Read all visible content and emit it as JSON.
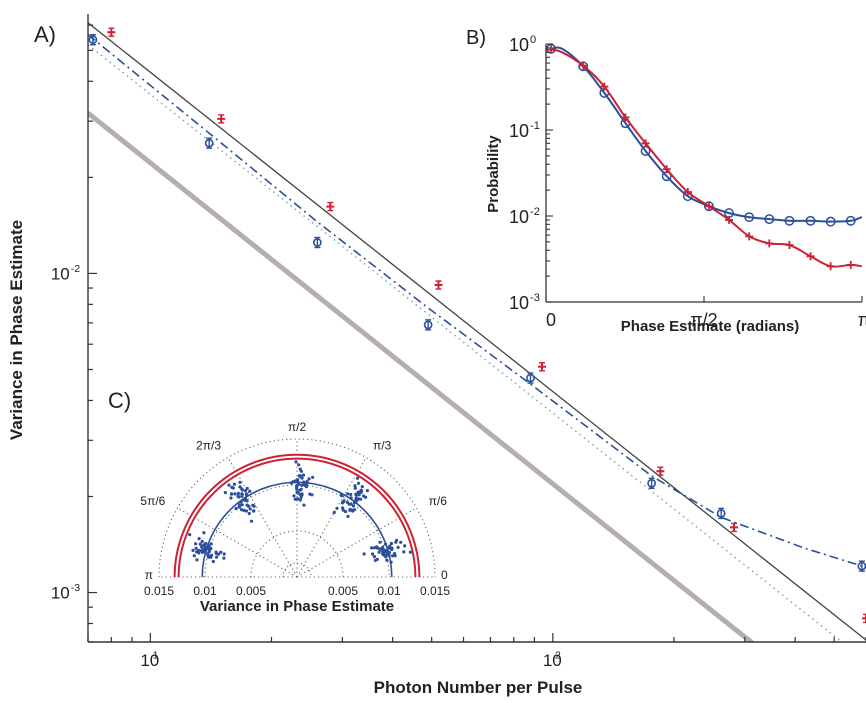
{
  "chart_data": [
    {
      "panel": "A)",
      "type": "scatter",
      "xlabel": "Photon Number per Pulse",
      "ylabel": "Variance in Phase Estimate",
      "xscale": "log",
      "yscale": "log",
      "xlim": [
        7,
        600
      ],
      "ylim": [
        0.0007,
        0.065
      ],
      "x_ticks": [
        {
          "value": 10,
          "base": "10",
          "exp": "1"
        },
        {
          "value": 100,
          "base": "10",
          "exp": "2"
        }
      ],
      "y_ticks": [
        {
          "value": 0.001,
          "base": "10",
          "exp": "-3"
        },
        {
          "value": 0.01,
          "base": "10",
          "exp": "-2"
        }
      ],
      "series": [
        {
          "marker": "plus",
          "color": "#cc2233",
          "x": [
            8,
            15,
            28,
            52,
            94,
            185,
            282,
            600
          ],
          "y": [
            0.057,
            0.0305,
            0.0162,
            0.0092,
            0.0051,
            0.0024,
            0.0016,
            0.00083
          ]
        },
        {
          "marker": "circle",
          "color": "#2b4f9a",
          "x": [
            7.2,
            14,
            26,
            49,
            88,
            176,
            262,
            586
          ],
          "y": [
            0.054,
            0.0256,
            0.0125,
            0.0069,
            0.0047,
            0.0022,
            0.00177,
            0.00121
          ]
        }
      ],
      "lines": [
        {
          "style": "solid",
          "color": "#444444",
          "points": [
            [
              7,
              0.061
            ],
            [
              600,
              0.00071
            ]
          ]
        },
        {
          "style": "dotted",
          "color": "#7a9ea8",
          "points": [
            [
              7,
              0.052
            ],
            [
              600,
              0.00061
            ]
          ]
        },
        {
          "style": "dashdot",
          "color": "#2b4f9a",
          "points": [
            [
              7,
              0.056
            ],
            [
              14,
              0.0275
            ],
            [
              26,
              0.0145
            ],
            [
              49,
              0.0078
            ],
            [
              88,
              0.0045
            ],
            [
              176,
              0.00232
            ],
            [
              262,
              0.00172
            ],
            [
              420,
              0.00138
            ],
            [
              600,
              0.0012
            ]
          ]
        },
        {
          "style": "thick",
          "color": "#a89ea8",
          "points": [
            [
              7,
              0.0318
            ],
            [
              320,
              0.00068
            ]
          ]
        }
      ]
    },
    {
      "panel": "B)",
      "type": "line",
      "xlabel": "Phase Estimate (radians)",
      "ylabel": "Probability",
      "xlim": [
        0,
        3.1416
      ],
      "ylim": [
        0.001,
        1
      ],
      "yscale": "log",
      "x_ticks": [
        "0",
        "π/2",
        "π"
      ],
      "y_ticks": [
        {
          "value": 1,
          "base": "10",
          "exp": "0"
        },
        {
          "value": 0.1,
          "base": "10",
          "exp": "-1"
        },
        {
          "value": 0.01,
          "base": "10",
          "exp": "-2"
        },
        {
          "value": 0.001,
          "base": "10",
          "exp": "-3"
        }
      ],
      "series": [
        {
          "marker": "circle",
          "color": "#2b4f9a",
          "x": [
            0.05,
            0.16,
            0.37,
            0.58,
            0.79,
            0.99,
            1.2,
            1.41,
            1.62,
            1.82,
            2.02,
            2.22,
            2.42,
            2.63,
            2.83,
            3.03,
            3.14
          ],
          "y": [
            0.88,
            0.88,
            0.55,
            0.27,
            0.12,
            0.057,
            0.029,
            0.017,
            0.013,
            0.0108,
            0.0097,
            0.0092,
            0.0088,
            0.0088,
            0.0086,
            0.0088,
            0.0097
          ]
        },
        {
          "marker": "plus",
          "color": "#cc2233",
          "x": [
            0.05,
            0.16,
            0.37,
            0.58,
            0.79,
            0.99,
            1.2,
            1.41,
            1.62,
            1.82,
            2.02,
            2.22,
            2.42,
            2.63,
            2.83,
            3.03,
            3.14
          ],
          "y": [
            0.86,
            0.8,
            0.56,
            0.32,
            0.14,
            0.07,
            0.035,
            0.019,
            0.013,
            0.009,
            0.0058,
            0.0048,
            0.0046,
            0.0034,
            0.0026,
            0.0027,
            0.0026
          ]
        }
      ],
      "marker_x": [
        0.05,
        0.37,
        0.58,
        0.79,
        0.99,
        1.2,
        1.41,
        1.62,
        1.82,
        2.02,
        2.22,
        2.42,
        2.63,
        2.83,
        3.03
      ]
    },
    {
      "panel": "C)",
      "type": "polar-scatter",
      "xlabel": "Variance in Phase Estimate",
      "radial_max": 0.015,
      "radial_ticks": [
        "0.015",
        "0.01",
        "0.005",
        "",
        "0.005",
        "0.01",
        "0.015"
      ],
      "angle_labels": [
        {
          "angle_deg": 0,
          "label": "0"
        },
        {
          "angle_deg": 30,
          "label": "π/6"
        },
        {
          "angle_deg": 60,
          "label": "π/3"
        },
        {
          "angle_deg": 90,
          "label": "π/2"
        },
        {
          "angle_deg": 120,
          "label": "2π/3"
        },
        {
          "angle_deg": 150,
          "label": "5π/6"
        },
        {
          "angle_deg": 180,
          "label": "π"
        }
      ],
      "rings": [
        {
          "radius": 0.0133,
          "color": "#cc2233",
          "style": "double"
        },
        {
          "radius": 0.0103,
          "color": "#2b4f9a",
          "style": "solid"
        }
      ],
      "clusters": [
        {
          "angle_deg": 163,
          "radius": 0.0103,
          "color": "#2b4f9a"
        },
        {
          "angle_deg": 125,
          "radius": 0.0103,
          "color": "#2b4f9a"
        },
        {
          "angle_deg": 88,
          "radius": 0.0101,
          "color": "#2b4f9a"
        },
        {
          "angle_deg": 55,
          "radius": 0.0102,
          "color": "#2b4f9a"
        },
        {
          "angle_deg": 17,
          "radius": 0.0101,
          "color": "#2b4f9a"
        }
      ]
    }
  ]
}
